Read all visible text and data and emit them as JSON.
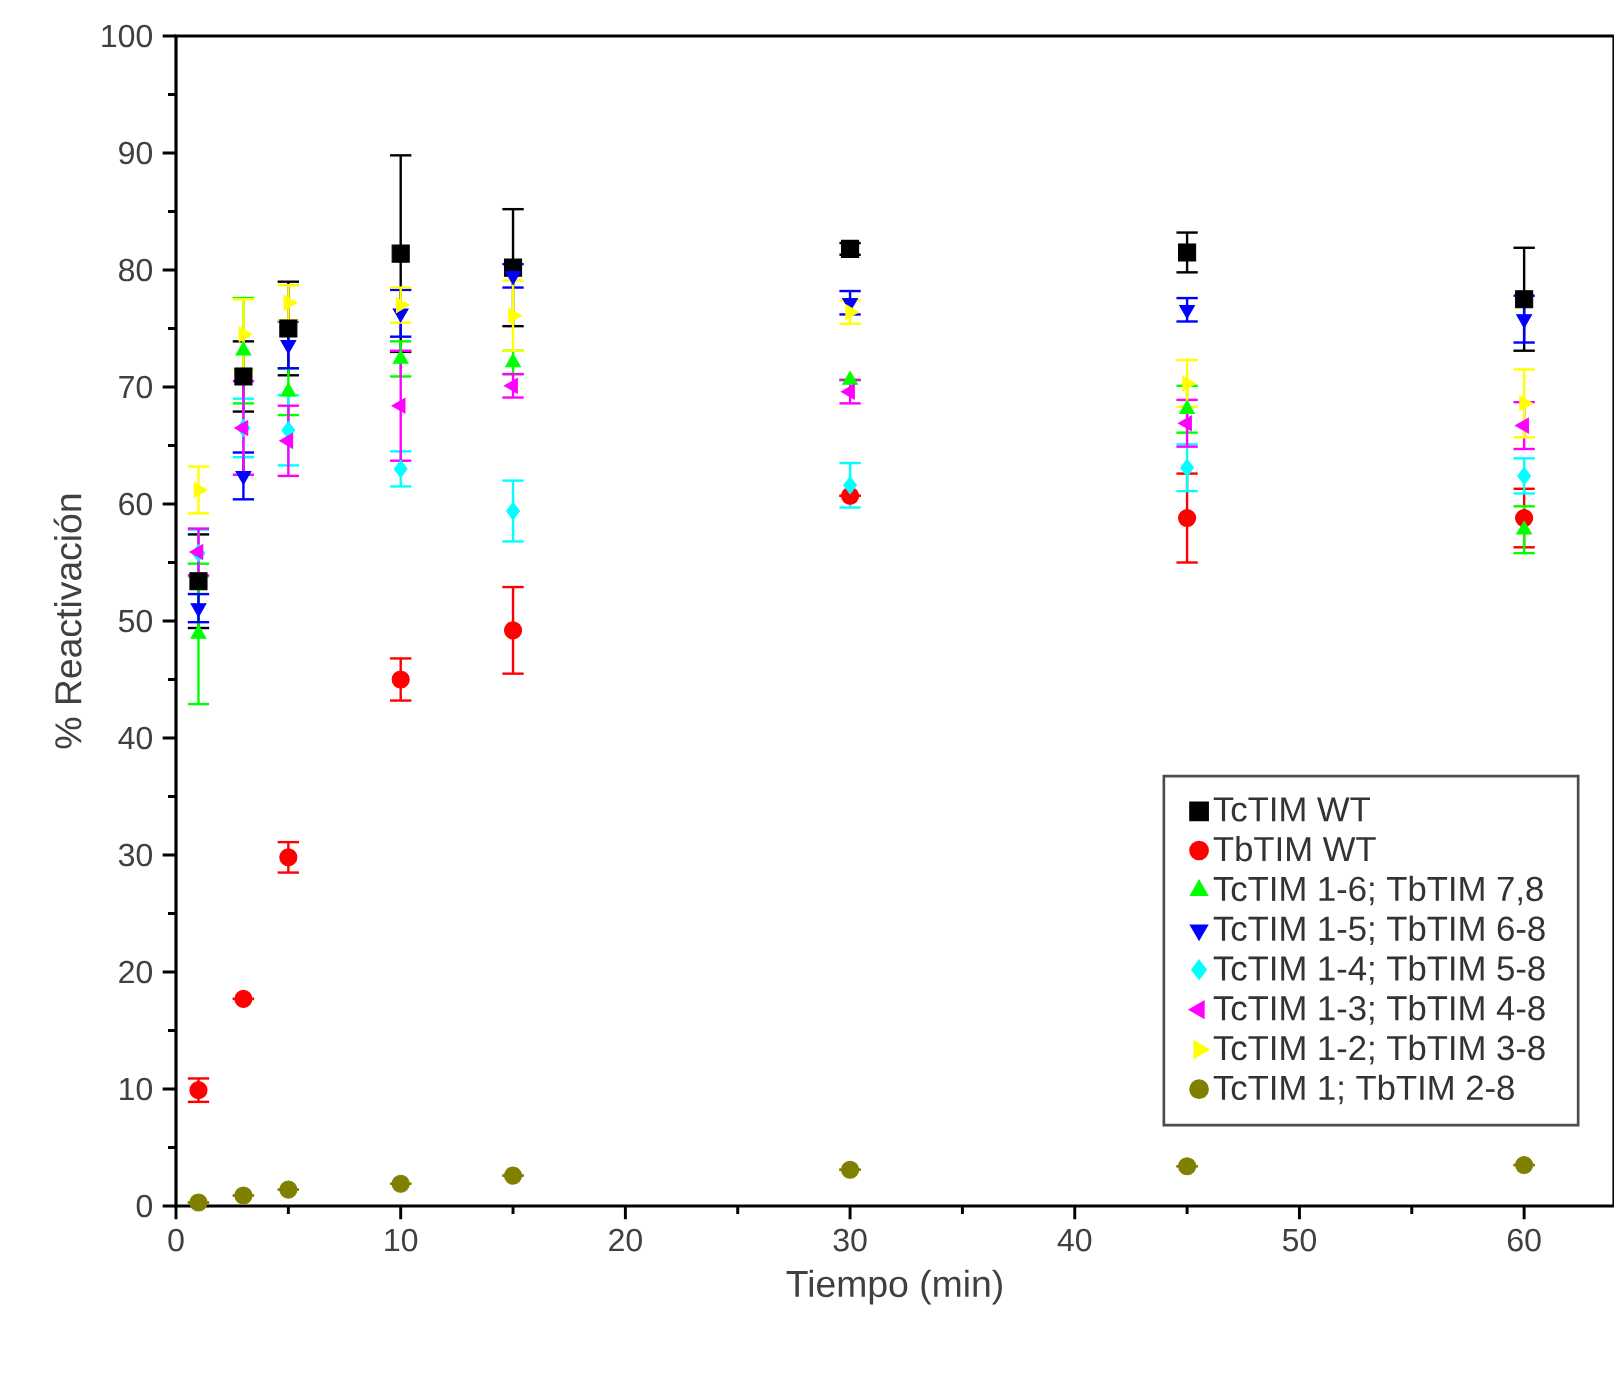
{
  "chart_data": {
    "type": "scatter",
    "xlabel": "Tiempo (min)",
    "ylabel": "% Reactivación",
    "x": [
      1,
      3,
      5,
      10,
      15,
      30,
      45,
      60
    ],
    "xlim": [
      0,
      64
    ],
    "ylim": [
      0,
      100
    ],
    "xticks": [
      0,
      10,
      20,
      30,
      40,
      50,
      60
    ],
    "yticks": [
      0,
      10,
      20,
      30,
      40,
      50,
      60,
      70,
      80,
      90,
      100
    ],
    "grid": false,
    "legend": "bottom right",
    "series": [
      {
        "name": "TcTIM WT",
        "color": "#000000",
        "marker": "square",
        "values": [
          53.4,
          70.9,
          75.0,
          81.4,
          80.2,
          81.8,
          81.5,
          77.5
        ],
        "errors": [
          4,
          3,
          4,
          8.4,
          5,
          0.5,
          1.7,
          4.4
        ]
      },
      {
        "name": "TbTIM WT",
        "color": "#ff0000",
        "marker": "circle",
        "values": [
          9.9,
          17.7,
          29.8,
          45.0,
          49.2,
          60.7,
          58.8,
          58.8
        ],
        "errors": [
          1,
          null,
          1.3,
          1.8,
          3.7,
          null,
          3.8,
          2.5
        ]
      },
      {
        "name": "TcTIM 1-6; TbTIM 7,8",
        "color": "#00ff00",
        "marker": "triangle",
        "values": [
          48.9,
          73.1,
          69.6,
          72.4,
          72.1,
          70.6,
          68.1,
          57.8
        ],
        "errors": [
          6,
          4.5,
          2,
          1.5,
          1,
          null,
          2,
          2
        ]
      },
      {
        "name": "TcTIM 1-5; TbTIM 6-8",
        "color": "#0000ff",
        "marker": "triangle-down",
        "values": [
          51.1,
          62.4,
          73.6,
          76.3,
          79.5,
          77.2,
          76.6,
          75.8
        ],
        "errors": [
          1.2,
          2,
          2,
          2,
          1,
          1,
          1,
          2
        ]
      },
      {
        "name": "TcTIM 1-4; TbTIM 5-8",
        "color": "#00ffff",
        "marker": "diamond",
        "values": [
          55.8,
          66.5,
          66.3,
          63.0,
          59.4,
          61.6,
          63.1,
          62.4
        ],
        "errors": [
          2,
          2.5,
          3,
          1.5,
          2.6,
          1.9,
          2,
          1.5
        ]
      },
      {
        "name": "TcTIM 1-3; TbTIM 4-8",
        "color": "#ff00ff",
        "marker": "triangle-left",
        "values": [
          55.9,
          66.5,
          65.4,
          68.4,
          70.1,
          69.6,
          66.9,
          66.7
        ],
        "errors": [
          2,
          4,
          3,
          4.7,
          1,
          1,
          2,
          2
        ]
      },
      {
        "name": "TcTIM 1-2; TbTIM 3-8",
        "color": "#ffff00",
        "marker": "triangle-right",
        "values": [
          61.2,
          74.5,
          77.2,
          77.0,
          76.1,
          76.4,
          70.3,
          68.6
        ],
        "errors": [
          2,
          3,
          1.5,
          1.5,
          3,
          1,
          2,
          2.9
        ]
      },
      {
        "name": "TcTIM 1; TbTIM 2-8",
        "color": "#808000",
        "marker": "circle",
        "values": [
          0.3,
          0.9,
          1.4,
          1.9,
          2.6,
          3.1,
          3.4,
          3.5
        ],
        "errors": [
          null,
          null,
          null,
          null,
          null,
          null,
          null,
          null
        ]
      }
    ]
  }
}
